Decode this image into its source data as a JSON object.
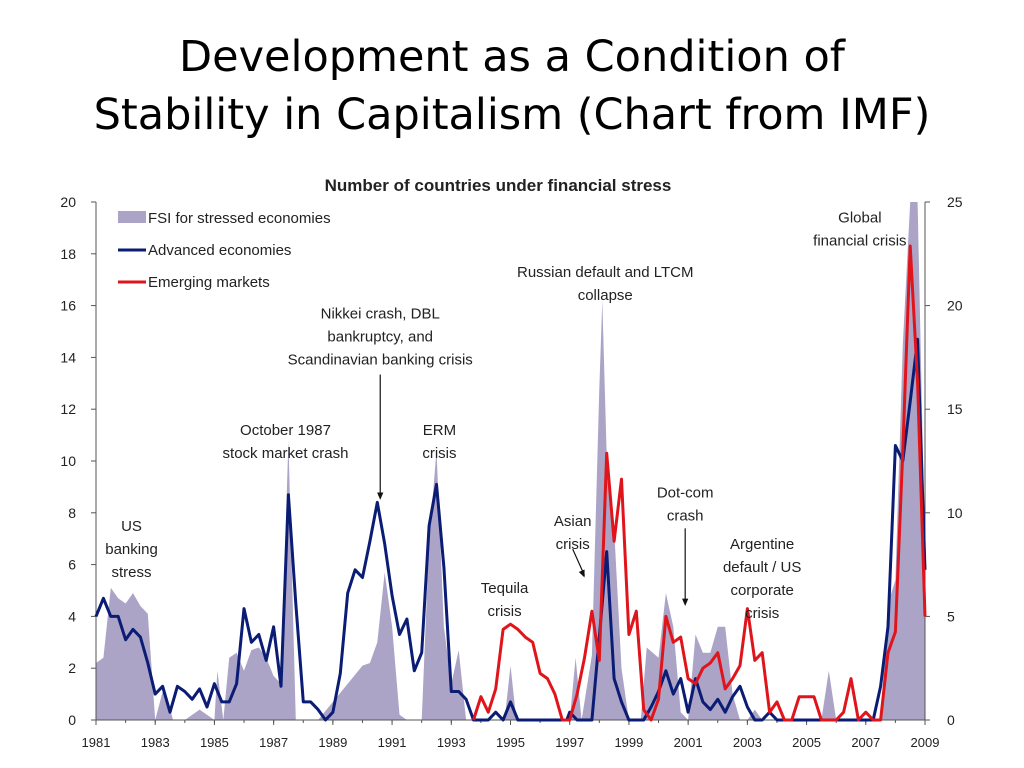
{
  "slide": {
    "title_line1": "Development as a Condition of",
    "title_line2": "Stability in Capitalism (Chart from IMF)"
  },
  "colors": {
    "fsi_fill": "#aba4c6",
    "advanced": "#0b1c74",
    "emerging": "#e0151b",
    "axis": "#555555"
  },
  "chart_data": {
    "type": "line",
    "title": "Number of countries under financial stress",
    "xlabel": "",
    "ylabel": "",
    "xlim": [
      1981,
      2009
    ],
    "ylim": [
      0,
      20
    ],
    "y2lim": [
      0,
      25
    ],
    "x_ticks": [
      "1981",
      "1983",
      "1985",
      "1987",
      "1989",
      "1991",
      "1993",
      "1995",
      "1997",
      "1999",
      "2001",
      "2003",
      "2005",
      "2007",
      "2009"
    ],
    "y_ticks": [
      "0",
      "2",
      "4",
      "6",
      "8",
      "10",
      "12",
      "14",
      "16",
      "18",
      "20"
    ],
    "y2_ticks": [
      "0",
      "5",
      "10",
      "15",
      "20",
      "25"
    ],
    "legend": [
      "FSI for stressed economies",
      "Advanced economies",
      "Emerging markets"
    ],
    "legend_position": "top-left",
    "series": [
      {
        "name": "FSI for stressed economies",
        "kind": "area",
        "axis": "left",
        "points": [
          [
            1981,
            2.2
          ],
          [
            1981.25,
            2.4
          ],
          [
            1981.5,
            5.1
          ],
          [
            1981.75,
            4.7
          ],
          [
            1982,
            4.5
          ],
          [
            1982.25,
            4.9
          ],
          [
            1982.5,
            4.4
          ],
          [
            1982.75,
            4.1
          ],
          [
            1983,
            0
          ],
          [
            1983.3,
            1.3
          ],
          [
            1983.6,
            0
          ],
          [
            1984,
            0
          ],
          [
            1984.5,
            0.4
          ],
          [
            1985,
            0
          ],
          [
            1985.1,
            1.9
          ],
          [
            1985.3,
            0
          ],
          [
            1985.5,
            2.4
          ],
          [
            1985.75,
            2.6
          ],
          [
            1986,
            1.9
          ],
          [
            1986.25,
            2.7
          ],
          [
            1986.5,
            2.8
          ],
          [
            1986.75,
            2.4
          ],
          [
            1987,
            1.7
          ],
          [
            1987.25,
            1.4
          ],
          [
            1987.5,
            10.8
          ],
          [
            1987.75,
            0
          ],
          [
            1988.5,
            0
          ],
          [
            1990,
            2.1
          ],
          [
            1990.25,
            2.2
          ],
          [
            1990.5,
            3.0
          ],
          [
            1990.75,
            5.7
          ],
          [
            1991,
            3.6
          ],
          [
            1991.25,
            0.2
          ],
          [
            1991.5,
            0
          ],
          [
            1992,
            0
          ],
          [
            1992.25,
            6.9
          ],
          [
            1992.5,
            10.4
          ],
          [
            1992.75,
            3.6
          ],
          [
            1993,
            1.4
          ],
          [
            1993.25,
            2.7
          ],
          [
            1993.5,
            0
          ],
          [
            1994,
            0
          ],
          [
            1994.8,
            0
          ],
          [
            1995,
            2.1
          ],
          [
            1995.2,
            0
          ],
          [
            1997,
            0
          ],
          [
            1997.2,
            2.4
          ],
          [
            1997.4,
            0
          ],
          [
            1997.75,
            2.5
          ],
          [
            1998,
            12.8
          ],
          [
            1998.1,
            16.2
          ],
          [
            1998.25,
            10.2
          ],
          [
            1998.5,
            7.4
          ],
          [
            1998.75,
            2.0
          ],
          [
            1999,
            0
          ],
          [
            1999.4,
            0
          ],
          [
            1999.6,
            2.8
          ],
          [
            2000,
            2.4
          ],
          [
            2000.25,
            4.9
          ],
          [
            2000.5,
            3.6
          ],
          [
            2000.75,
            0.3
          ],
          [
            2001,
            0
          ],
          [
            2001.25,
            3.3
          ],
          [
            2001.5,
            2.6
          ],
          [
            2001.75,
            2.6
          ],
          [
            2002,
            3.6
          ],
          [
            2002.25,
            3.6
          ],
          [
            2002.5,
            1.0
          ],
          [
            2002.75,
            0
          ],
          [
            2003,
            0
          ],
          [
            2003.25,
            0.4
          ],
          [
            2003.5,
            0
          ],
          [
            2005.5,
            0
          ],
          [
            2005.75,
            1.9
          ],
          [
            2006,
            0
          ],
          [
            2007.5,
            0
          ],
          [
            2007.75,
            4.5
          ],
          [
            2008,
            5.4
          ],
          [
            2008.25,
            14.5
          ],
          [
            2008.5,
            20
          ],
          [
            2008.75,
            20
          ],
          [
            2009,
            6.5
          ],
          [
            2009,
            0
          ]
        ]
      },
      {
        "name": "Advanced economies",
        "kind": "line",
        "axis": "left",
        "points": [
          [
            1981,
            4.0
          ],
          [
            1981.25,
            4.7
          ],
          [
            1981.5,
            4.0
          ],
          [
            1981.75,
            4.0
          ],
          [
            1982,
            3.1
          ],
          [
            1982.25,
            3.5
          ],
          [
            1982.5,
            3.2
          ],
          [
            1982.75,
            2.2
          ],
          [
            1983,
            1.0
          ],
          [
            1983.25,
            1.3
          ],
          [
            1983.5,
            0.3
          ],
          [
            1983.75,
            1.3
          ],
          [
            1984,
            1.1
          ],
          [
            1984.25,
            0.8
          ],
          [
            1984.5,
            1.2
          ],
          [
            1984.75,
            0.5
          ],
          [
            1985,
            1.4
          ],
          [
            1985.25,
            0.7
          ],
          [
            1985.5,
            0.7
          ],
          [
            1985.75,
            1.4
          ],
          [
            1986,
            4.3
          ],
          [
            1986.25,
            3.0
          ],
          [
            1986.5,
            3.3
          ],
          [
            1986.75,
            2.3
          ],
          [
            1987,
            3.6
          ],
          [
            1987.25,
            1.3
          ],
          [
            1987.5,
            8.7
          ],
          [
            1987.75,
            4.5
          ],
          [
            1988,
            0.7
          ],
          [
            1988.25,
            0.7
          ],
          [
            1988.5,
            0.4
          ],
          [
            1988.75,
            0
          ],
          [
            1989,
            0.3
          ],
          [
            1989.25,
            1.8
          ],
          [
            1989.5,
            4.9
          ],
          [
            1989.75,
            5.8
          ],
          [
            1990,
            5.5
          ],
          [
            1990.25,
            6.9
          ],
          [
            1990.5,
            8.4
          ],
          [
            1990.75,
            6.8
          ],
          [
            1991,
            4.8
          ],
          [
            1991.25,
            3.3
          ],
          [
            1991.5,
            3.9
          ],
          [
            1991.75,
            1.9
          ],
          [
            1992,
            2.6
          ],
          [
            1992.25,
            7.5
          ],
          [
            1992.5,
            9.1
          ],
          [
            1992.75,
            5.9
          ],
          [
            1993,
            1.1
          ],
          [
            1993.25,
            1.1
          ],
          [
            1993.5,
            0.8
          ],
          [
            1993.75,
            0
          ],
          [
            1994,
            0
          ],
          [
            1994.25,
            0
          ],
          [
            1994.5,
            0.3
          ],
          [
            1994.75,
            0
          ],
          [
            1995,
            0.7
          ],
          [
            1995.25,
            0
          ],
          [
            1995.5,
            0
          ],
          [
            1996,
            0
          ],
          [
            1996.5,
            0
          ],
          [
            1996.9,
            0
          ],
          [
            1997,
            0.3
          ],
          [
            1997.25,
            0
          ],
          [
            1997.5,
            0
          ],
          [
            1997.75,
            0
          ],
          [
            1998,
            3.2
          ],
          [
            1998.25,
            6.5
          ],
          [
            1998.5,
            1.6
          ],
          [
            1998.75,
            0.7
          ],
          [
            1999,
            0
          ],
          [
            1999.25,
            0
          ],
          [
            1999.5,
            0
          ],
          [
            1999.75,
            0.5
          ],
          [
            2000,
            1.1
          ],
          [
            2000.25,
            1.9
          ],
          [
            2000.5,
            1.0
          ],
          [
            2000.75,
            1.6
          ],
          [
            2001,
            0.3
          ],
          [
            2001.25,
            1.6
          ],
          [
            2001.5,
            0.7
          ],
          [
            2001.75,
            0.4
          ],
          [
            2002,
            0.8
          ],
          [
            2002.25,
            0.3
          ],
          [
            2002.5,
            0.9
          ],
          [
            2002.75,
            1.3
          ],
          [
            2003,
            0.5
          ],
          [
            2003.25,
            0
          ],
          [
            2003.5,
            0
          ],
          [
            2003.75,
            0.3
          ],
          [
            2004,
            0
          ],
          [
            2005,
            0
          ],
          [
            2006,
            0
          ],
          [
            2007,
            0
          ],
          [
            2007.25,
            0
          ],
          [
            2007.5,
            1.3
          ],
          [
            2007.75,
            3.6
          ],
          [
            2008,
            10.6
          ],
          [
            2008.25,
            10.0
          ],
          [
            2008.5,
            12.3
          ],
          [
            2008.75,
            14.7
          ],
          [
            2009,
            5.8
          ]
        ]
      },
      {
        "name": "Emerging markets",
        "kind": "line",
        "axis": "left",
        "points": [
          [
            1993.75,
            0
          ],
          [
            1994,
            0.9
          ],
          [
            1994.25,
            0.3
          ],
          [
            1994.5,
            1.2
          ],
          [
            1994.75,
            3.5
          ],
          [
            1995,
            3.7
          ],
          [
            1995.25,
            3.5
          ],
          [
            1995.5,
            3.2
          ],
          [
            1995.75,
            3.0
          ],
          [
            1996,
            1.8
          ],
          [
            1996.25,
            1.6
          ],
          [
            1996.5,
            1.0
          ],
          [
            1996.75,
            0
          ],
          [
            1997,
            0
          ],
          [
            1997.25,
            1.0
          ],
          [
            1997.5,
            2.4
          ],
          [
            1997.75,
            4.2
          ],
          [
            1998,
            2.3
          ],
          [
            1998.25,
            10.3
          ],
          [
            1998.5,
            6.9
          ],
          [
            1998.75,
            9.3
          ],
          [
            1999,
            3.3
          ],
          [
            1999.25,
            4.2
          ],
          [
            1999.5,
            0.4
          ],
          [
            1999.75,
            0
          ],
          [
            2000,
            0.8
          ],
          [
            2000.25,
            4.0
          ],
          [
            2000.5,
            3.0
          ],
          [
            2000.75,
            3.2
          ],
          [
            2001,
            1.6
          ],
          [
            2001.25,
            1.4
          ],
          [
            2001.5,
            2.0
          ],
          [
            2001.75,
            2.2
          ],
          [
            2002,
            2.6
          ],
          [
            2002.25,
            1.2
          ],
          [
            2002.5,
            1.6
          ],
          [
            2002.75,
            2.1
          ],
          [
            2003,
            4.3
          ],
          [
            2003.25,
            2.3
          ],
          [
            2003.5,
            2.6
          ],
          [
            2003.75,
            0.3
          ],
          [
            2004,
            0.7
          ],
          [
            2004.25,
            0
          ],
          [
            2004.5,
            0
          ],
          [
            2004.75,
            0.9
          ],
          [
            2005,
            0.9
          ],
          [
            2005.25,
            0.9
          ],
          [
            2005.5,
            0
          ],
          [
            2005.75,
            0
          ],
          [
            2006,
            0
          ],
          [
            2006.25,
            0.3
          ],
          [
            2006.5,
            1.6
          ],
          [
            2006.75,
            0
          ],
          [
            2007,
            0.3
          ],
          [
            2007.25,
            0
          ],
          [
            2007.5,
            0
          ],
          [
            2007.75,
            2.6
          ],
          [
            2008,
            3.4
          ],
          [
            2008.25,
            10.4
          ],
          [
            2008.5,
            18.3
          ],
          [
            2008.75,
            13.0
          ],
          [
            2009,
            4.0
          ]
        ]
      }
    ],
    "annotations": [
      {
        "id": "us-banking",
        "lines": [
          "US",
          "banking",
          "stress"
        ],
        "at": [
          1982.2,
          7.3
        ],
        "arrow": false
      },
      {
        "id": "oct-1987",
        "lines": [
          "October 1987",
          "stock market crash"
        ],
        "at": [
          1987.4,
          11.0
        ],
        "arrow": false
      },
      {
        "id": "nikkei",
        "lines": [
          "Nikkei crash, DBL",
          "bankruptcy, and",
          "Scandinavian banking crisis"
        ],
        "at": [
          1990.6,
          15.5
        ],
        "arrow": true,
        "arrow_to": [
          1990.6,
          8.5
        ]
      },
      {
        "id": "erm",
        "lines": [
          "ERM",
          "crisis"
        ],
        "at": [
          1992.6,
          11.0
        ],
        "arrow": false
      },
      {
        "id": "tequila",
        "lines": [
          "Tequila",
          "crisis"
        ],
        "at": [
          1994.8,
          4.9
        ],
        "arrow": false
      },
      {
        "id": "asian",
        "lines": [
          "Asian",
          "crisis"
        ],
        "at": [
          1997.1,
          7.5
        ],
        "arrow": true,
        "arrow_to": [
          1997.5,
          5.5
        ],
        "arrow_from": [
          1997.1,
          6.6
        ]
      },
      {
        "id": "russian",
        "lines": [
          "Russian default and LTCM",
          "collapse"
        ],
        "at": [
          1998.2,
          17.1
        ],
        "arrow": false
      },
      {
        "id": "dotcom",
        "lines": [
          "Dot-com",
          "crash"
        ],
        "at": [
          2000.9,
          8.6
        ],
        "arrow": true,
        "arrow_to": [
          2000.9,
          4.4
        ],
        "arrow_from": [
          2000.9,
          7.4
        ]
      },
      {
        "id": "argentine",
        "lines": [
          "Argentine",
          "default / US",
          "corporate",
          "crisis"
        ],
        "at": [
          2003.5,
          6.6
        ],
        "arrow": false
      },
      {
        "id": "global",
        "lines": [
          "Global",
          "financial crisis"
        ],
        "at": [
          2006.8,
          19.2
        ],
        "arrow": false
      }
    ]
  }
}
